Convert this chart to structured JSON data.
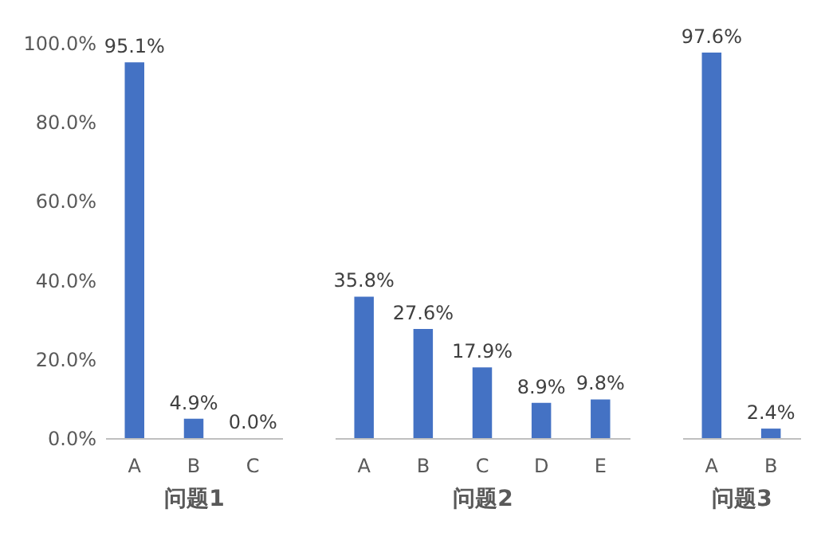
{
  "chart_data": [
    {
      "type": "bar",
      "xlabel": "问题1",
      "categories": [
        "A",
        "B",
        "C"
      ],
      "values": [
        95.1,
        4.9,
        0.0
      ],
      "value_labels": [
        "95.1%",
        "4.9%",
        "0.0%"
      ],
      "color": "#4472c4",
      "ylim": [
        0,
        100
      ],
      "yticks": [
        {
          "value": 0,
          "label": "0.0%"
        },
        {
          "value": 20,
          "label": "20.0%"
        },
        {
          "value": 40,
          "label": "40.0%"
        },
        {
          "value": 60,
          "label": "60.0%"
        },
        {
          "value": 80,
          "label": "80.0%"
        },
        {
          "value": 100,
          "label": "100.0%"
        }
      ],
      "grid": false
    },
    {
      "type": "bar",
      "xlabel": "问题2",
      "categories": [
        "A",
        "B",
        "C",
        "D",
        "E"
      ],
      "values": [
        35.8,
        27.6,
        17.9,
        8.9,
        9.8
      ],
      "value_labels": [
        "35.8%",
        "27.6%",
        "17.9%",
        "8.9%",
        "9.8%"
      ],
      "color": "#4472c4",
      "ylim": [
        0,
        100
      ],
      "tick_labels": "x",
      "grid": false
    },
    {
      "type": "bar",
      "xlabel": "问题3",
      "categories": [
        "A",
        "B"
      ],
      "values": [
        97.6,
        2.4
      ],
      "value_labels": [
        "97.6%",
        "2.4%"
      ],
      "color": "#4472c4",
      "ylim": [
        0,
        100
      ],
      "tick_labels": "x",
      "grid": false
    }
  ]
}
